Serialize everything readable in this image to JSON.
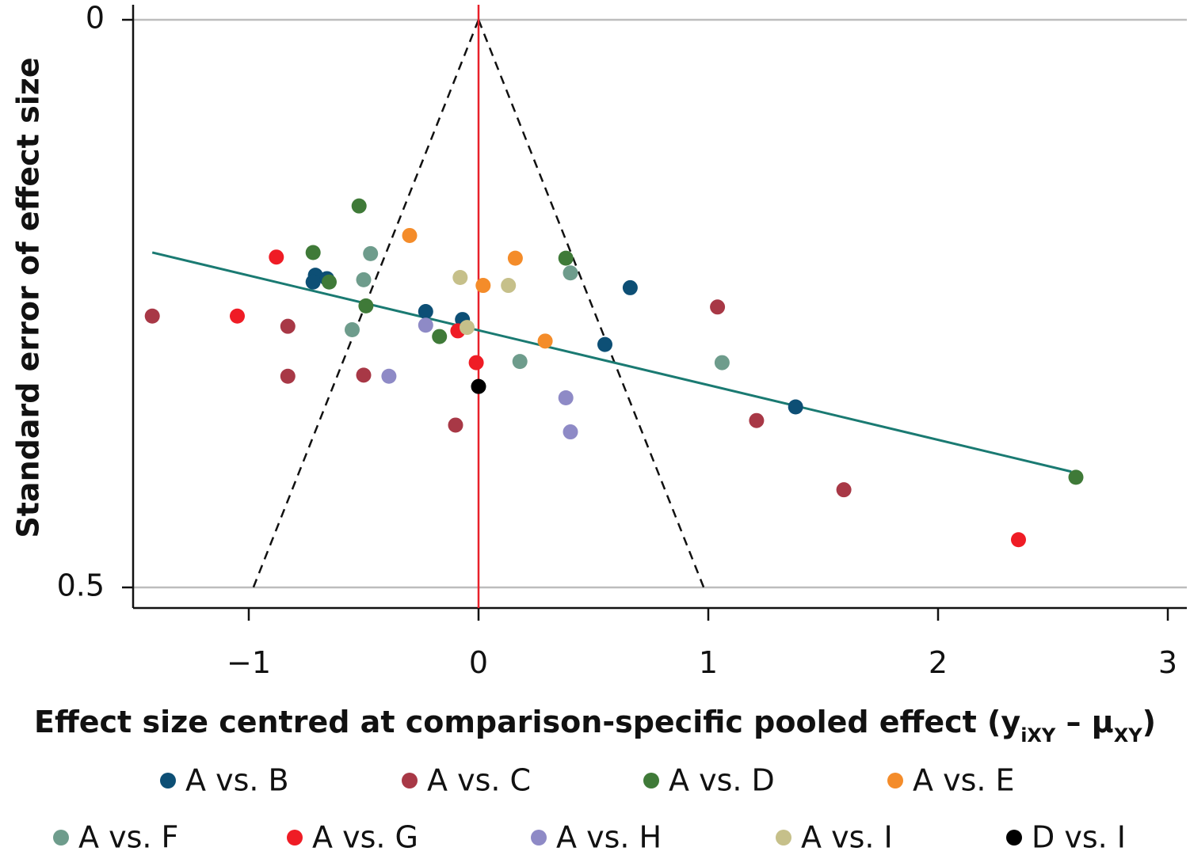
{
  "chart_data": {
    "type": "scatter",
    "xlabel": "Effect size centred at comparison-specific pooled effect (y",
    "xlabel_sub1": "iXY",
    "xlabel_mid": " – μ",
    "xlabel_sub2": "XY",
    "xlabel_end": ")",
    "ylabel": "Standard error of effect size",
    "xlim": [
      -1.5,
      3.08
    ],
    "ylim": [
      0,
      0.5
    ],
    "y_reversed": true,
    "x_ticks": [
      -1,
      0,
      1,
      2,
      3
    ],
    "x_tick_labels": [
      "−1",
      "0",
      "1",
      "2",
      "3"
    ],
    "y_ticks": [
      0,
      0.5
    ],
    "y_tick_labels": [
      "0",
      "0.5"
    ],
    "grid": "horizontal at y ticks",
    "reference_line": {
      "x": 0,
      "color": "#e8202a"
    },
    "funnel": {
      "apex": [
        0,
        0
      ],
      "base_y": 0.5,
      "base_x": [
        -0.98,
        0.98
      ],
      "style": "dashed",
      "color": "#111111"
    },
    "regression_line": {
      "from": [
        -1.42,
        0.205
      ],
      "to": [
        2.58,
        0.398
      ],
      "color": "#1a7a72"
    },
    "legend_placement": "bottom",
    "series": [
      {
        "name": "A vs. B",
        "color": "#0d4f75",
        "points": [
          [
            -0.71,
            0.225
          ],
          [
            -0.66,
            0.228
          ],
          [
            -0.72,
            0.231
          ],
          [
            -0.23,
            0.257
          ],
          [
            -0.07,
            0.264
          ],
          [
            0.55,
            0.286
          ],
          [
            0.66,
            0.236
          ],
          [
            1.38,
            0.341
          ]
        ]
      },
      {
        "name": "A vs. C",
        "color": "#a83846",
        "points": [
          [
            -1.42,
            0.261
          ],
          [
            -0.83,
            0.27
          ],
          [
            -0.83,
            0.314
          ],
          [
            -0.5,
            0.313
          ],
          [
            -0.1,
            0.357
          ],
          [
            1.04,
            0.253
          ],
          [
            1.21,
            0.353
          ],
          [
            1.59,
            0.414
          ]
        ]
      },
      {
        "name": "A vs. D",
        "color": "#3f7a38",
        "points": [
          [
            -0.52,
            0.164
          ],
          [
            -0.72,
            0.205
          ],
          [
            -0.65,
            0.231
          ],
          [
            -0.49,
            0.252
          ],
          [
            -0.17,
            0.279
          ],
          [
            0.38,
            0.21
          ],
          [
            2.6,
            0.403
          ]
        ]
      },
      {
        "name": "A vs. E",
        "color": "#f48c2a",
        "points": [
          [
            -0.3,
            0.19
          ],
          [
            0.16,
            0.21
          ],
          [
            0.02,
            0.234
          ],
          [
            0.29,
            0.283
          ]
        ]
      },
      {
        "name": "A vs. F",
        "color": "#6e9c8c",
        "points": [
          [
            -0.47,
            0.206
          ],
          [
            -0.5,
            0.229
          ],
          [
            -0.55,
            0.273
          ],
          [
            0.4,
            0.223
          ],
          [
            0.18,
            0.301
          ],
          [
            1.06,
            0.302
          ]
        ]
      },
      {
        "name": "A vs. G",
        "color": "#ef1c25",
        "points": [
          [
            -0.88,
            0.209
          ],
          [
            -1.05,
            0.261
          ],
          [
            -0.09,
            0.274
          ],
          [
            -0.01,
            0.302
          ],
          [
            2.35,
            0.458
          ]
        ]
      },
      {
        "name": "A vs. H",
        "color": "#8e8ac6",
        "points": [
          [
            -0.23,
            0.269
          ],
          [
            -0.39,
            0.314
          ],
          [
            0.38,
            0.333
          ],
          [
            0.4,
            0.363
          ]
        ]
      },
      {
        "name": "A vs. I",
        "color": "#c6c08a",
        "points": [
          [
            -0.08,
            0.227
          ],
          [
            0.13,
            0.234
          ],
          [
            -0.05,
            0.271
          ]
        ]
      },
      {
        "name": "D vs. I",
        "color": "#000000",
        "points": [
          [
            0.0,
            0.323
          ]
        ]
      }
    ]
  }
}
